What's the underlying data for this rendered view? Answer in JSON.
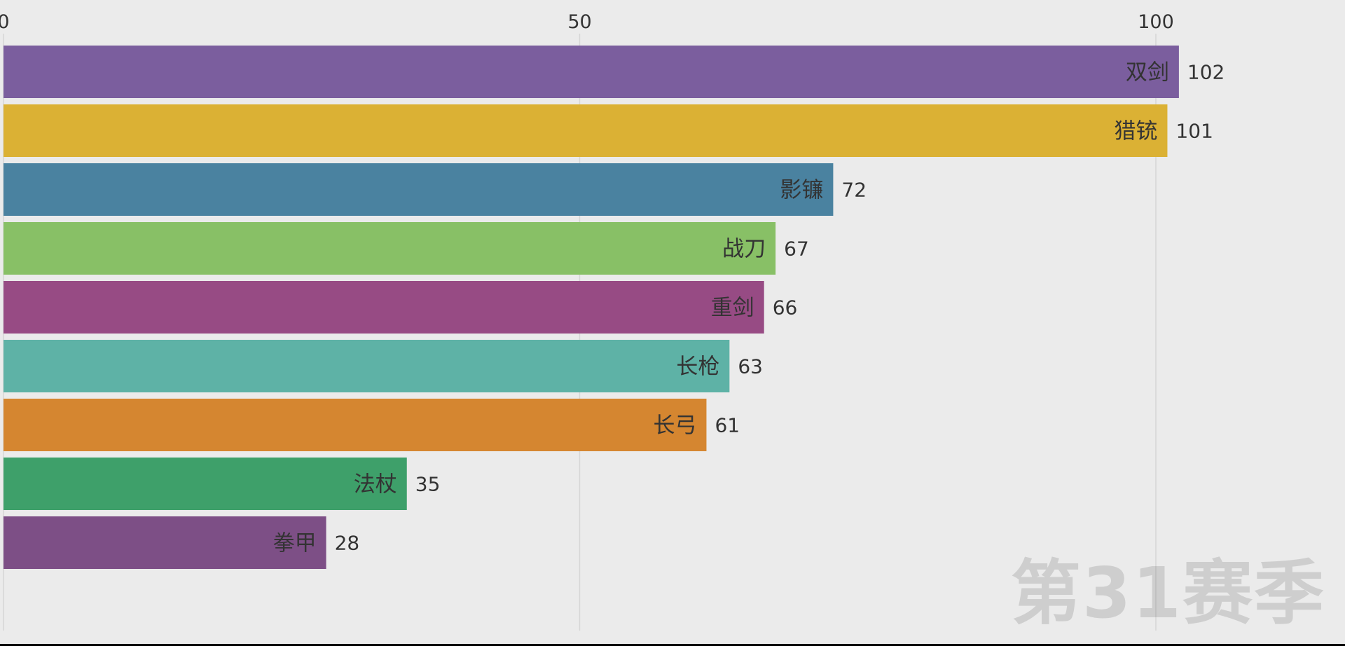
{
  "chart_data": {
    "type": "bar",
    "orientation": "horizontal",
    "categories": [
      "双剑",
      "猎铳",
      "影镰",
      "战刀",
      "重剑",
      "长枪",
      "长弓",
      "法杖",
      "拳甲"
    ],
    "values": [
      102,
      101,
      72,
      67,
      66,
      63,
      61,
      35,
      28
    ],
    "colors": [
      "#7b5e9e",
      "#dbb134",
      "#4a82a0",
      "#88c066",
      "#974b84",
      "#5eb2a6",
      "#d58630",
      "#3ea06a",
      "#7d4f86"
    ],
    "xlim": [
      0,
      115
    ],
    "x_ticks": [
      0,
      50,
      100
    ],
    "tick_position": "top",
    "grid": true,
    "title": "",
    "xlabel": "",
    "ylabel": "",
    "annotation": "第31赛季"
  }
}
